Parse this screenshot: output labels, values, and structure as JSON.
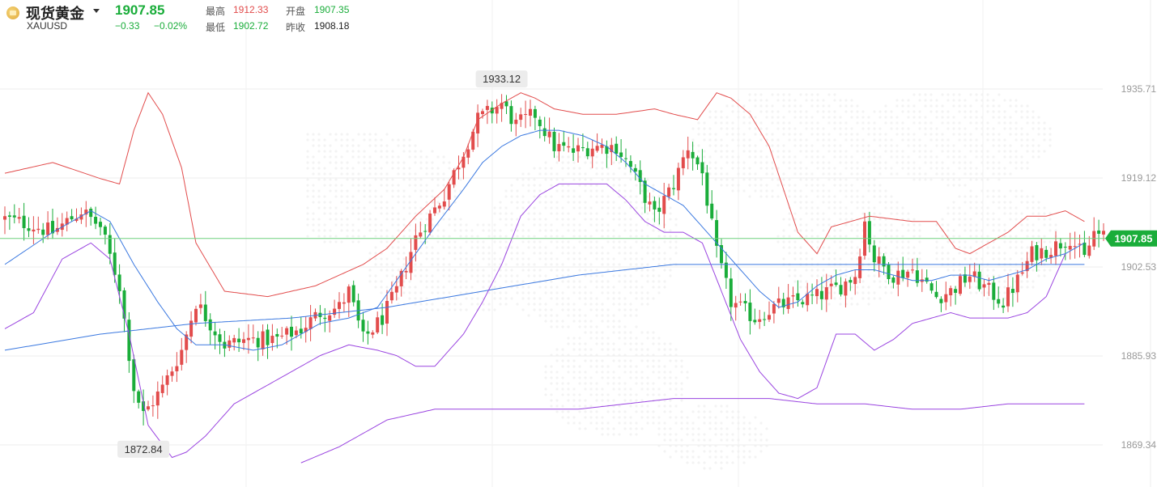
{
  "header": {
    "name": "现货黄金",
    "symbol": "XAUUSD",
    "price": "1907.85",
    "change": "−0.33",
    "change_pct": "−0.02%",
    "high_label": "最高",
    "high": "1912.33",
    "open_label": "开盘",
    "open": "1907.35",
    "low_label": "最低",
    "low": "1902.72",
    "prev_label": "昨收",
    "prev_close": "1908.18"
  },
  "chart_data": {
    "type": "candlestick",
    "ylim": [
      1864.0,
      1945.0
    ],
    "y_ticks": [
      1935.71,
      1919.12,
      1902.53,
      1885.93,
      1869.34
    ],
    "y_tick_labels": [
      "1935.71",
      "1919.12",
      "1902.53",
      "1885.93",
      "1869.34"
    ],
    "grid": true,
    "current_price": 1907.85,
    "current_price_label": "1907.85",
    "annotations": [
      {
        "label": "1933.12",
        "index": 104,
        "value": 1933.12,
        "position": "above"
      },
      {
        "label": "1872.84",
        "index": 29,
        "value": 1872.84,
        "position": "below"
      }
    ],
    "colors": {
      "up": "#e24c4c",
      "down": "#1aad3a",
      "boll_upper": "#e24c4c",
      "boll_mid": "#3a78e0",
      "boll_lower": "#9a44e0",
      "current_line": "#6fd07f",
      "current_tag": "#1aad3a"
    },
    "key_closes": [
      [
        0,
        1911.5
      ],
      [
        5,
        1910.5
      ],
      [
        10,
        1909
      ],
      [
        16,
        1913
      ],
      [
        20,
        1910
      ],
      [
        24,
        1899
      ],
      [
        27,
        1880
      ],
      [
        29,
        1875
      ],
      [
        33,
        1880
      ],
      [
        37,
        1887
      ],
      [
        40,
        1896
      ],
      [
        46,
        1888
      ],
      [
        51,
        1889
      ],
      [
        57,
        1889
      ],
      [
        62,
        1891
      ],
      [
        66,
        1894
      ],
      [
        70,
        1895
      ],
      [
        72,
        1898
      ],
      [
        75,
        1889
      ],
      [
        79,
        1893
      ],
      [
        82,
        1898
      ],
      [
        86,
        1908
      ],
      [
        89,
        1912
      ],
      [
        92,
        1916
      ],
      [
        96,
        1924
      ],
      [
        99,
        1930
      ],
      [
        104,
        1933
      ],
      [
        107,
        1929
      ],
      [
        111,
        1931
      ],
      [
        115,
        1925
      ],
      [
        119,
        1924
      ],
      [
        123,
        1925
      ],
      [
        128,
        1925
      ],
      [
        131,
        1921
      ],
      [
        136,
        1912
      ],
      [
        140,
        1918
      ],
      [
        143,
        1925
      ],
      [
        146,
        1920
      ],
      [
        149,
        1905
      ],
      [
        152,
        1896
      ],
      [
        157,
        1893
      ],
      [
        161,
        1895
      ],
      [
        165,
        1896
      ],
      [
        170,
        1897
      ],
      [
        175,
        1899
      ],
      [
        178,
        1901
      ],
      [
        180,
        1911
      ],
      [
        182,
        1904
      ],
      [
        186,
        1901
      ],
      [
        190,
        1902
      ],
      [
        195,
        1897
      ],
      [
        198,
        1898
      ],
      [
        202,
        1901
      ],
      [
        206,
        1898
      ],
      [
        209,
        1896
      ],
      [
        212,
        1900
      ],
      [
        215,
        1905
      ],
      [
        219,
        1906
      ],
      [
        223,
        1908
      ],
      [
        226,
        1904
      ],
      [
        228,
        1909
      ],
      [
        230,
        1908
      ]
    ],
    "bollinger_upper": [
      [
        0,
        1920
      ],
      [
        10,
        1922
      ],
      [
        20,
        1919
      ],
      [
        24,
        1918
      ],
      [
        27,
        1928
      ],
      [
        30,
        1935
      ],
      [
        33,
        1931
      ],
      [
        37,
        1921
      ],
      [
        40,
        1907
      ],
      [
        46,
        1898
      ],
      [
        55,
        1897
      ],
      [
        65,
        1899
      ],
      [
        75,
        1903
      ],
      [
        80,
        1906
      ],
      [
        86,
        1912
      ],
      [
        92,
        1917
      ],
      [
        96,
        1923
      ],
      [
        99,
        1930
      ],
      [
        104,
        1933
      ],
      [
        108,
        1935
      ],
      [
        111,
        1934
      ],
      [
        115,
        1932
      ],
      [
        121,
        1931
      ],
      [
        128,
        1931
      ],
      [
        136,
        1932
      ],
      [
        140,
        1931
      ],
      [
        145,
        1930
      ],
      [
        149,
        1935
      ],
      [
        152,
        1934
      ],
      [
        156,
        1931
      ],
      [
        160,
        1925
      ],
      [
        166,
        1909
      ],
      [
        170,
        1905
      ],
      [
        173,
        1910
      ],
      [
        177,
        1911
      ],
      [
        181,
        1912
      ],
      [
        190,
        1911
      ],
      [
        195,
        1911
      ],
      [
        199,
        1906
      ],
      [
        202,
        1905
      ],
      [
        206,
        1907
      ],
      [
        210,
        1909
      ],
      [
        214,
        1912
      ],
      [
        218,
        1912
      ],
      [
        222,
        1913
      ],
      [
        226,
        1911
      ]
    ],
    "bollinger_mid": [
      [
        0,
        1903
      ],
      [
        10,
        1909
      ],
      [
        18,
        1913
      ],
      [
        22,
        1911
      ],
      [
        27,
        1903
      ],
      [
        32,
        1896
      ],
      [
        36,
        1891
      ],
      [
        40,
        1888
      ],
      [
        46,
        1888
      ],
      [
        52,
        1887
      ],
      [
        58,
        1888
      ],
      [
        62,
        1890
      ],
      [
        66,
        1892
      ],
      [
        72,
        1893
      ],
      [
        78,
        1895
      ],
      [
        82,
        1900
      ],
      [
        86,
        1905
      ],
      [
        90,
        1910
      ],
      [
        96,
        1917
      ],
      [
        100,
        1922
      ],
      [
        104,
        1925
      ],
      [
        108,
        1927
      ],
      [
        112,
        1928
      ],
      [
        116,
        1928
      ],
      [
        121,
        1927
      ],
      [
        126,
        1925
      ],
      [
        130,
        1922
      ],
      [
        134,
        1918
      ],
      [
        138,
        1916
      ],
      [
        142,
        1914
      ],
      [
        146,
        1910
      ],
      [
        150,
        1906
      ],
      [
        154,
        1902
      ],
      [
        158,
        1898
      ],
      [
        162,
        1895
      ],
      [
        166,
        1896
      ],
      [
        170,
        1899
      ],
      [
        174,
        1901
      ],
      [
        178,
        1902
      ],
      [
        182,
        1902
      ],
      [
        186,
        1901
      ],
      [
        190,
        1900
      ],
      [
        194,
        1900
      ],
      [
        198,
        1901
      ],
      [
        202,
        1901
      ],
      [
        206,
        1900
      ],
      [
        210,
        1901
      ],
      [
        214,
        1902
      ],
      [
        218,
        1904
      ],
      [
        222,
        1905
      ],
      [
        226,
        1907
      ]
    ],
    "bollinger_lower": [
      [
        0,
        1891
      ],
      [
        6,
        1894
      ],
      [
        12,
        1904
      ],
      [
        18,
        1907
      ],
      [
        22,
        1904
      ],
      [
        26,
        1890
      ],
      [
        30,
        1873
      ],
      [
        35,
        1867
      ],
      [
        38,
        1868
      ],
      [
        42,
        1871
      ],
      [
        48,
        1877
      ],
      [
        54,
        1880
      ],
      [
        60,
        1883
      ],
      [
        66,
        1886
      ],
      [
        72,
        1888
      ],
      [
        78,
        1887
      ],
      [
        82,
        1886
      ],
      [
        86,
        1884
      ],
      [
        90,
        1884
      ],
      [
        96,
        1890
      ],
      [
        100,
        1896
      ],
      [
        104,
        1903
      ],
      [
        108,
        1912
      ],
      [
        112,
        1916
      ],
      [
        116,
        1918
      ],
      [
        121,
        1918
      ],
      [
        126,
        1918
      ],
      [
        130,
        1915
      ],
      [
        134,
        1911
      ],
      [
        138,
        1909
      ],
      [
        142,
        1909
      ],
      [
        146,
        1907
      ],
      [
        150,
        1898
      ],
      [
        154,
        1889
      ],
      [
        158,
        1883
      ],
      [
        162,
        1879
      ],
      [
        166,
        1878
      ],
      [
        170,
        1880
      ],
      [
        174,
        1890
      ],
      [
        178,
        1890
      ],
      [
        182,
        1887
      ],
      [
        186,
        1889
      ],
      [
        190,
        1892
      ],
      [
        194,
        1893
      ],
      [
        198,
        1894
      ],
      [
        202,
        1893
      ],
      [
        206,
        1893
      ],
      [
        210,
        1893
      ],
      [
        214,
        1894
      ],
      [
        218,
        1897
      ],
      [
        222,
        1905
      ]
    ],
    "ma_long": [
      [
        0,
        1887
      ],
      [
        20,
        1890
      ],
      [
        40,
        1892
      ],
      [
        60,
        1893
      ],
      [
        80,
        1895
      ],
      [
        100,
        1898
      ],
      [
        120,
        1901
      ],
      [
        140,
        1903
      ],
      [
        160,
        1903
      ],
      [
        180,
        1903
      ],
      [
        200,
        1903
      ],
      [
        220,
        1903
      ],
      [
        226,
        1903
      ]
    ],
    "band_lower_long": [
      [
        62,
        1866
      ],
      [
        70,
        1869
      ],
      [
        80,
        1874
      ],
      [
        90,
        1876
      ],
      [
        100,
        1876
      ],
      [
        110,
        1876
      ],
      [
        120,
        1876
      ],
      [
        130,
        1877
      ],
      [
        140,
        1878
      ],
      [
        150,
        1878
      ],
      [
        160,
        1878
      ],
      [
        170,
        1877
      ],
      [
        180,
        1877
      ],
      [
        190,
        1876
      ],
      [
        200,
        1876
      ],
      [
        210,
        1877
      ],
      [
        220,
        1877
      ],
      [
        226,
        1877
      ]
    ]
  }
}
